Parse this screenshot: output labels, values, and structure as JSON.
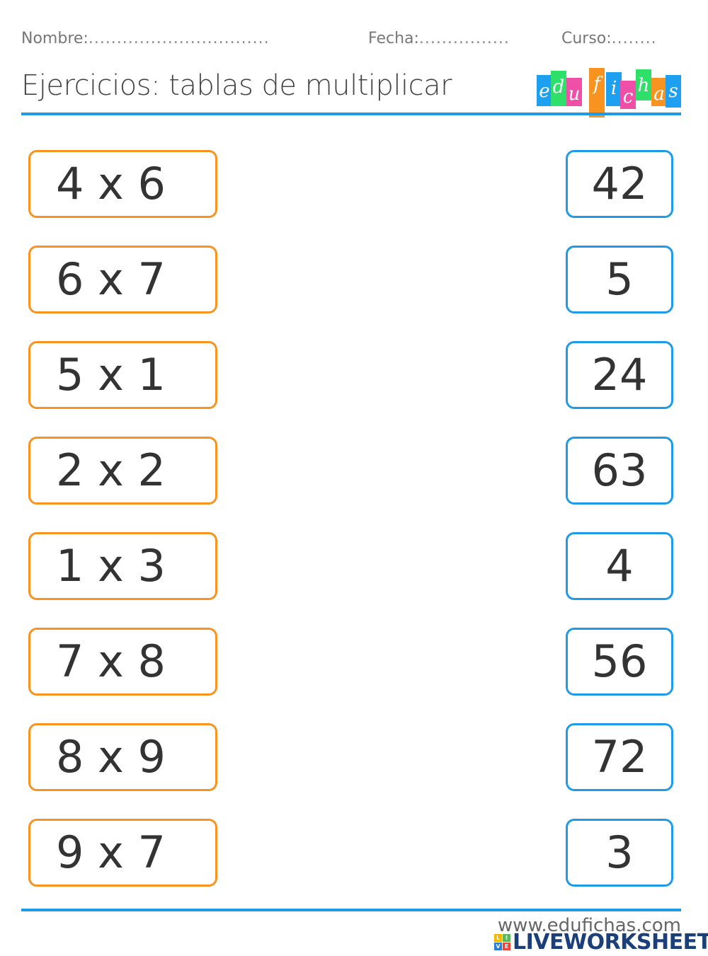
{
  "header": {
    "name_label": "Nombre:",
    "name_dots": "................................",
    "date_label": "Fecha:",
    "date_dots": "................",
    "course_label": "Curso:",
    "course_dots": "........",
    "title": "Ejercicios: tablas de multiplicar"
  },
  "logo": {
    "text": "edufichas",
    "letters": [
      "e",
      "d",
      "u",
      "f",
      "i",
      "c",
      "h",
      "a",
      "s"
    ]
  },
  "colors": {
    "left_border": "#f7931e",
    "right_border": "#1e9be8",
    "rule": "#1e9be8"
  },
  "exercises": [
    "4 x 6",
    "6 x 7",
    "5 x 1",
    "2 x 2",
    "1 x 3",
    "7 x 8",
    "8 x 9",
    "9 x 7"
  ],
  "answers": [
    "42",
    "5",
    "24",
    "63",
    "4",
    "56",
    "72",
    "3"
  ],
  "footer": {
    "site": "www.edufichas.com",
    "brand": "LIVEWORKSHEETS",
    "brand_icon_letters": [
      "L",
      "I",
      "V",
      "E"
    ]
  }
}
